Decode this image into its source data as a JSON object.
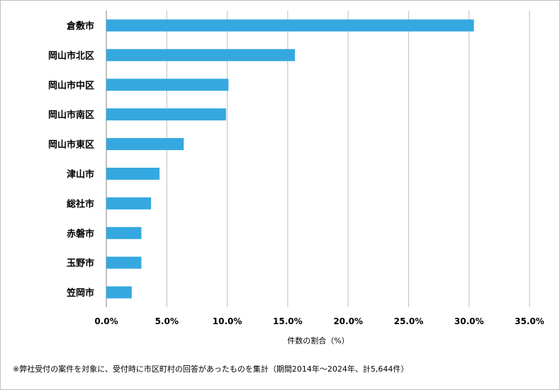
{
  "chart_data": {
    "type": "bar",
    "orientation": "horizontal",
    "categories": [
      "倉敷市",
      "岡山市北区",
      "岡山市中区",
      "岡山市南区",
      "岡山市東区",
      "津山市",
      "総社市",
      "赤磐市",
      "玉野市",
      "笠岡市"
    ],
    "values": [
      30.4,
      15.6,
      10.1,
      9.9,
      6.4,
      4.4,
      3.7,
      2.9,
      2.9,
      2.1
    ],
    "xlabel": "件数の割合（%）",
    "ylabel": "",
    "xlim": [
      0,
      35
    ],
    "x_ticks": [
      "0.0%",
      "5.0%",
      "10.0%",
      "15.0%",
      "20.0%",
      "25.0%",
      "30.0%",
      "35.0%"
    ],
    "grid": "vertical",
    "bar_color": "#35a8e0",
    "footnote": "※弊社受付の案件を対象に、受付時に市区町村の回答があったものを集計（期間2014年～2024年、計5,644件）"
  }
}
